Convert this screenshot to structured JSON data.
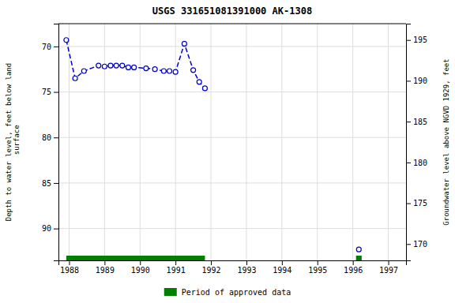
{
  "chart_data": {
    "type": "line",
    "title": "USGS 331651081391000 AK-1308",
    "ylabel": "Depth to water level, feet below land\n surface",
    "y2label": "Groundwater level above NGVD 1929, feet",
    "xlim": [
      1987.7,
      1997.5
    ],
    "ylim": [
      93.5,
      67.5
    ],
    "y2lim": [
      168.0,
      197.0
    ],
    "xticks": [
      1988,
      1989,
      1990,
      1991,
      1992,
      1993,
      1994,
      1995,
      1996,
      1997
    ],
    "yticks": [
      70,
      75,
      80,
      85,
      90
    ],
    "y2ticks": [
      170,
      175,
      180,
      185,
      190,
      195
    ],
    "grid": true,
    "legend": "bottom",
    "series": [
      {
        "type": "line",
        "color": "#0000cc",
        "line_style": "dashed",
        "marker": "circle",
        "x": [
          1987.92,
          1988.17,
          1988.42,
          1988.83,
          1989.0,
          1989.17,
          1989.33,
          1989.5,
          1989.67,
          1989.83,
          1990.17,
          1990.42,
          1990.67,
          1990.83,
          1991.0,
          1991.25,
          1991.5,
          1991.67,
          1991.83
        ],
        "values": [
          69.3,
          73.5,
          72.7,
          72.1,
          72.2,
          72.1,
          72.1,
          72.1,
          72.3,
          72.3,
          72.4,
          72.5,
          72.7,
          72.7,
          72.8,
          69.7,
          72.6,
          73.9,
          74.6
        ]
      },
      {
        "type": "scatter",
        "color": "#0000cc",
        "marker": "circle",
        "x": [
          1996.17
        ],
        "values": [
          92.3
        ]
      },
      {
        "type": "span",
        "name": "Period of approved data",
        "color": "#008000",
        "x_start": [
          1987.92,
          1996.09
        ],
        "x_end": [
          1991.83,
          1996.25
        ]
      }
    ]
  }
}
